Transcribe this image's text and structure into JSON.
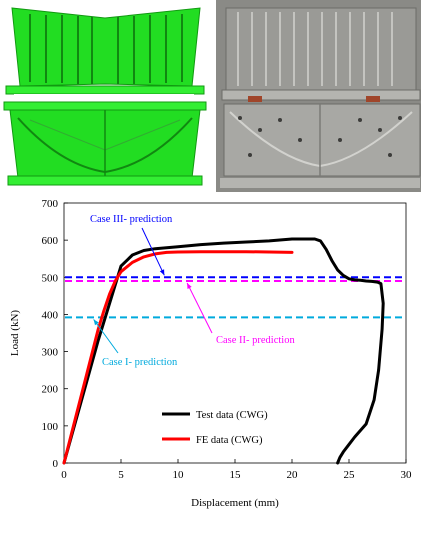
{
  "photos": {
    "fe_model": "fe-model-image",
    "test_specimen": "test-specimen-photo"
  },
  "chart_data": {
    "type": "line",
    "xlabel": "Displacement (mm)",
    "ylabel": "Load (kN)",
    "xlim": [
      0,
      30
    ],
    "ylim": [
      0,
      700
    ],
    "xticks": [
      0,
      5,
      10,
      15,
      20,
      25,
      30
    ],
    "yticks": [
      0,
      100,
      200,
      300,
      400,
      500,
      600,
      700
    ],
    "grid": false,
    "legend_position": "bottom-center",
    "series": [
      {
        "name": "Test data (CWG)",
        "color": "#000000",
        "x": [
          0,
          1,
          2,
          3,
          4,
          4.5,
          5,
          6,
          7,
          8,
          10,
          12,
          14,
          16,
          18,
          20,
          21,
          22,
          22.5,
          23,
          23.5,
          24,
          24.5,
          25,
          25.5,
          26,
          26.5,
          27,
          27.5,
          27.8,
          28,
          27.9,
          27.6,
          27.2,
          26.5,
          25.5,
          25,
          24.5,
          24.2,
          24
        ],
        "y": [
          0,
          110,
          220,
          330,
          430,
          480,
          530,
          560,
          572,
          577,
          582,
          588,
          592,
          595,
          598,
          603,
          603,
          603,
          598,
          575,
          545,
          520,
          505,
          496,
          493,
          492,
          490,
          489,
          487,
          483,
          430,
          360,
          250,
          170,
          105,
          70,
          50,
          30,
          15,
          0
        ]
      },
      {
        "name": "FE data (CWG)",
        "color": "#ff0000",
        "x": [
          0,
          1,
          2,
          3,
          3.5,
          4,
          4.5,
          5,
          6,
          7,
          8,
          9,
          10,
          12,
          14,
          16,
          18,
          20
        ],
        "y": [
          0,
          120,
          240,
          360,
          410,
          455,
          490,
          515,
          540,
          555,
          563,
          567,
          568,
          569,
          569,
          569,
          568,
          567
        ]
      }
    ],
    "reference_lines": [
      {
        "label": "Case III- prediction",
        "y": 500,
        "color": "#0000ff"
      },
      {
        "label": "Case II- prediction",
        "y": 490,
        "color": "#ff00ff"
      },
      {
        "label": "Case I- prediction",
        "y": 392,
        "color": "#00aadd"
      }
    ]
  }
}
